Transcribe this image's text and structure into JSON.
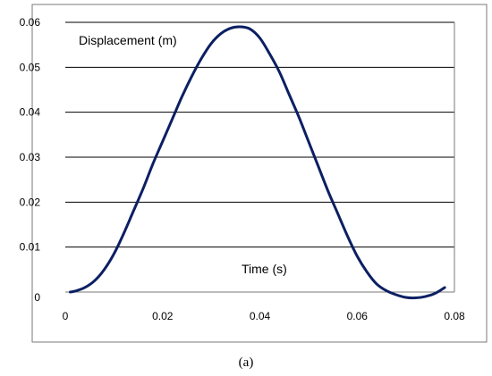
{
  "chart_data": {
    "type": "line",
    "title": "",
    "xlabel": "Time (s)",
    "ylabel": "Displacement  (m)",
    "xlim": [
      0,
      0.08
    ],
    "ylim": [
      0,
      0.06
    ],
    "xticks": [
      "0",
      "0.02",
      "0.04",
      "0.06",
      "0.08"
    ],
    "yticks": [
      "0",
      "0.01",
      "0.02",
      "0.03",
      "0.04",
      "0.05",
      "0.06"
    ],
    "grid": "horizontal",
    "series": [
      {
        "color": "#0b1f63",
        "x": [
          0.001,
          0.002,
          0.004,
          0.006,
          0.008,
          0.01,
          0.012,
          0.014,
          0.016,
          0.018,
          0.02,
          0.022,
          0.024,
          0.026,
          0.028,
          0.03,
          0.032,
          0.034,
          0.036,
          0.038,
          0.04,
          0.042,
          0.044,
          0.046,
          0.048,
          0.05,
          0.052,
          0.054,
          0.056,
          0.058,
          0.06,
          0.062,
          0.064,
          0.066,
          0.068,
          0.07,
          0.072,
          0.074,
          0.076,
          0.078
        ],
        "y": [
          0.0,
          0.0002,
          0.001,
          0.0025,
          0.005,
          0.0085,
          0.013,
          0.018,
          0.023,
          0.0285,
          0.0335,
          0.0385,
          0.0435,
          0.048,
          0.052,
          0.0553,
          0.0575,
          0.0587,
          0.059,
          0.0585,
          0.0565,
          0.053,
          0.049,
          0.044,
          0.039,
          0.0335,
          0.028,
          0.0225,
          0.0175,
          0.0125,
          0.008,
          0.0045,
          0.0018,
          0.0003,
          -0.0006,
          -0.0012,
          -0.0013,
          -0.001,
          -0.0003,
          0.001
        ]
      }
    ]
  },
  "caption": "(a)"
}
